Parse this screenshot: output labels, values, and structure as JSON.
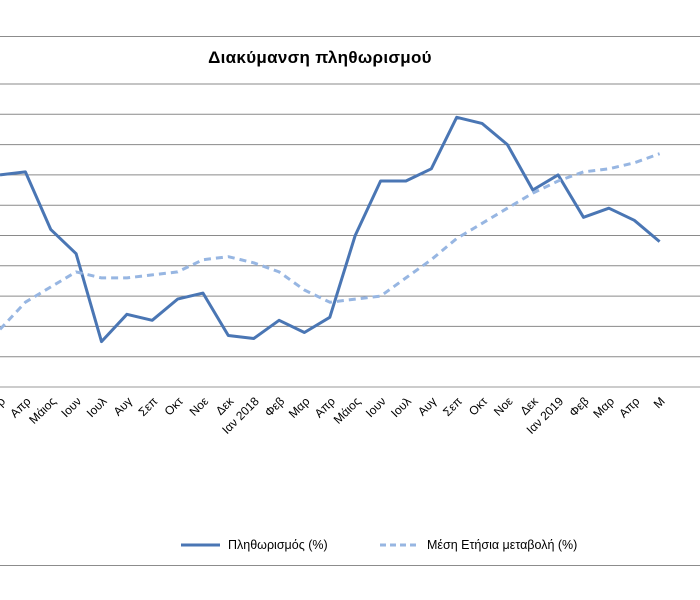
{
  "chart_data": {
    "type": "line",
    "title": "Διακύμανση  πληθωρισμού",
    "xlabel": "",
    "ylabel": "",
    "grid": true,
    "legend_position": "bottom",
    "categories": [
      "Μαρ",
      "Απρ",
      "Μάιος",
      "Ιουν",
      "Ιουλ",
      "Αυγ",
      "Σεπ",
      "Οκτ",
      "Νοε",
      "Δεκ",
      "Ιαν 2018",
      "Φεβ",
      "Μαρ",
      "Απρ",
      "Μάιος",
      "Ιουν",
      "Ιουλ",
      "Αυγ",
      "Σεπ",
      "Οκτ",
      "Νοε",
      "Δεκ",
      "Ιαν 2019",
      "Φεβ",
      "Μαρ",
      "Απρ",
      "Μάιος"
    ],
    "visible_tick_labels": [
      "ρ",
      "Απρ",
      "Μάιος",
      "Ιουν",
      "Ιουλ",
      "Αυγ",
      "Σεπ",
      "Οκτ",
      "Νοε",
      "Δεκ",
      "Ιαν 2018",
      "Φεβ",
      "Μαρ",
      "Απρ",
      "Μάιος",
      "Ιουν",
      "Ιουλ",
      "Αυγ",
      "Σεπ",
      "Οκτ",
      "Νοε",
      "Δεκ",
      "Ιαν 2019",
      "Φεβ",
      "Μαρ",
      "Απρ",
      "Μ"
    ],
    "series": [
      {
        "name": "Πληθωρισμός (%)",
        "color": "#4a76b4",
        "dash": "solid",
        "values": [
          7.0,
          7.1,
          5.2,
          4.4,
          1.5,
          2.4,
          2.2,
          2.9,
          3.1,
          1.7,
          1.6,
          2.2,
          1.8,
          2.3,
          5.0,
          6.8,
          6.8,
          7.2,
          8.9,
          8.7,
          8.0,
          6.5,
          7.0,
          5.6,
          5.9,
          5.5,
          4.8
        ]
      },
      {
        "name": "Μέση Ετήσια μεταβολή (%)",
        "color": "#97b6e2",
        "dash": "dashed",
        "values": [
          1.9,
          2.8,
          3.3,
          3.8,
          3.6,
          3.6,
          3.7,
          3.8,
          4.2,
          4.3,
          4.1,
          3.8,
          3.2,
          2.8,
          2.9,
          3.0,
          3.6,
          4.2,
          4.9,
          5.4,
          5.9,
          6.4,
          6.8,
          7.1,
          7.2,
          7.4,
          7.7
        ]
      }
    ]
  }
}
